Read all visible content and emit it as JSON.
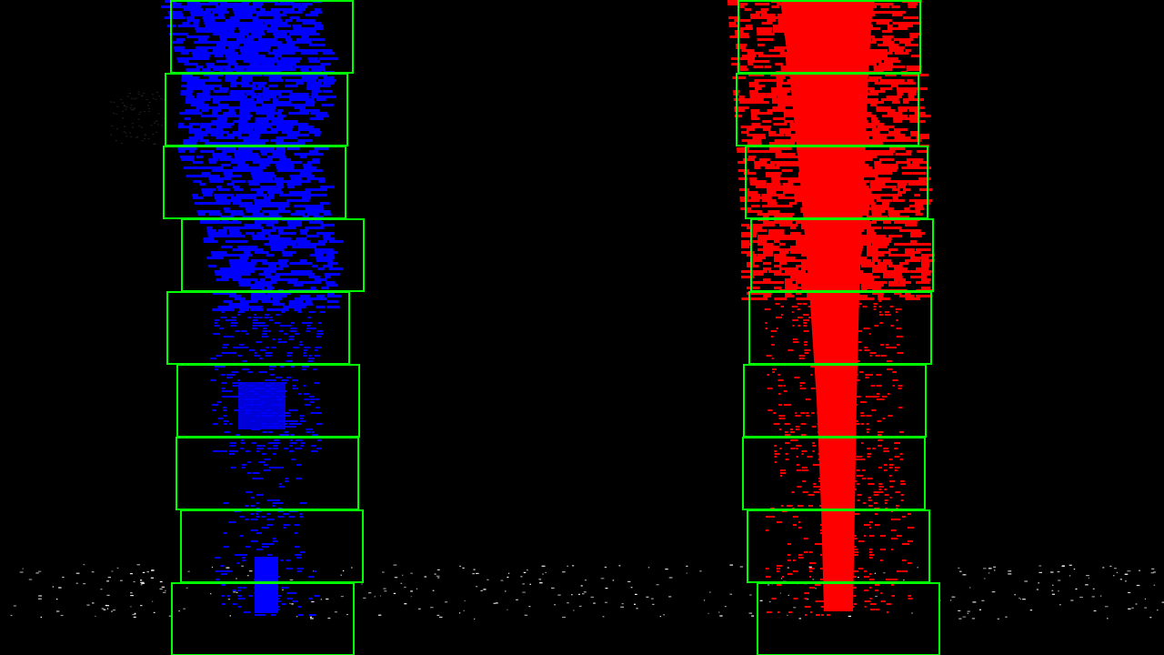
{
  "image": {
    "background_color": "#000000",
    "left_lane_color": "#0000ff",
    "right_lane_color": "#ff0000",
    "window_color": "#00ff00",
    "noise_color": "#ffffff",
    "windows_per_lane": 9
  }
}
